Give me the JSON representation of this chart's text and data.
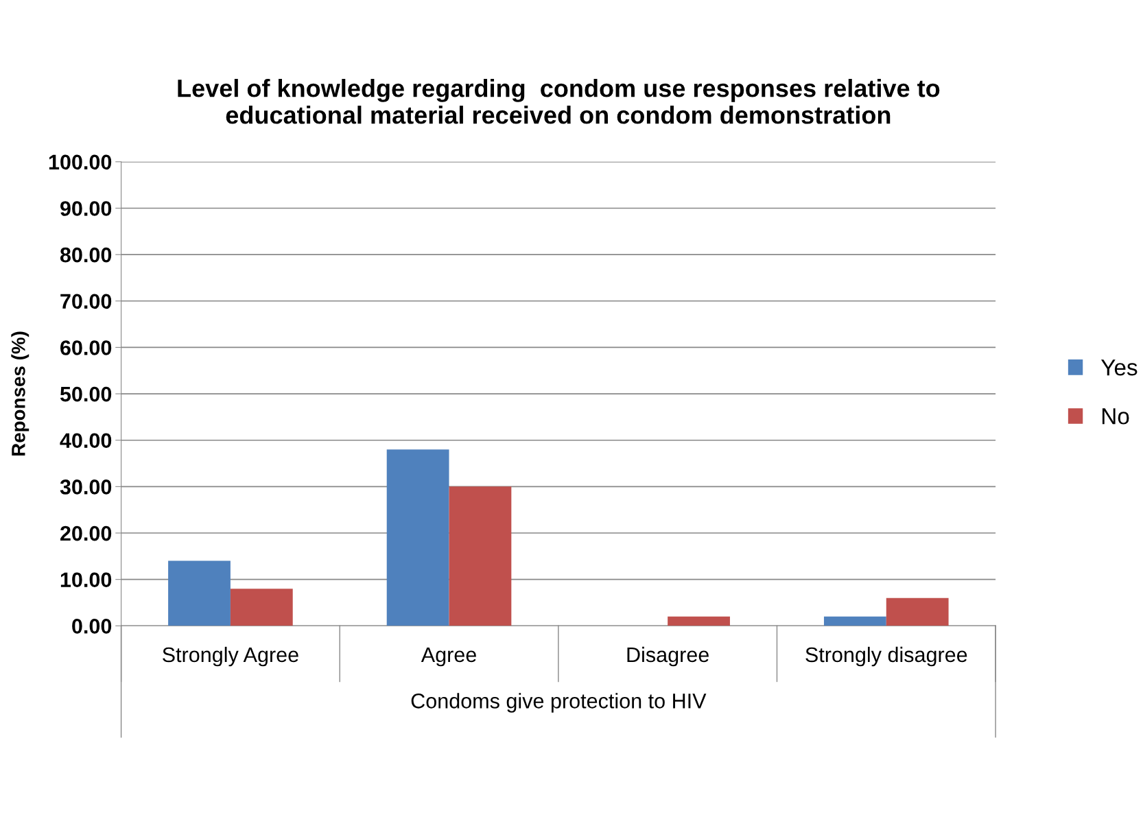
{
  "chart_data": {
    "type": "bar",
    "title": "Level of knowledge regarding  condom use responses relative to\neducational material received on condom demonstration",
    "xlabel": "Condoms give protection to HIV",
    "ylabel": "Reponses (%)",
    "categories": [
      "Strongly Agree",
      "Agree",
      "Disagree",
      "Strongly disagree"
    ],
    "series": [
      {
        "name": "Yes",
        "color": "#4f81bd",
        "values": [
          14,
          38,
          0,
          2
        ]
      },
      {
        "name": "No",
        "color": "#c0504d",
        "values": [
          8,
          30,
          2,
          6
        ]
      }
    ],
    "ylim": [
      0,
      100
    ],
    "yticks": [
      {
        "value": 0,
        "label": "0.00"
      },
      {
        "value": 10,
        "label": "10.00"
      },
      {
        "value": 20,
        "label": "20.00"
      },
      {
        "value": 30,
        "label": "30.00"
      },
      {
        "value": 40,
        "label": "40.00"
      },
      {
        "value": 50,
        "label": "50.00"
      },
      {
        "value": 60,
        "label": "60.00"
      },
      {
        "value": 70,
        "label": "70.00"
      },
      {
        "value": 80,
        "label": "80.00"
      },
      {
        "value": 90,
        "label": "90.00"
      },
      {
        "value": 100,
        "label": "100.00"
      }
    ],
    "grid": "y",
    "legend": "right"
  }
}
